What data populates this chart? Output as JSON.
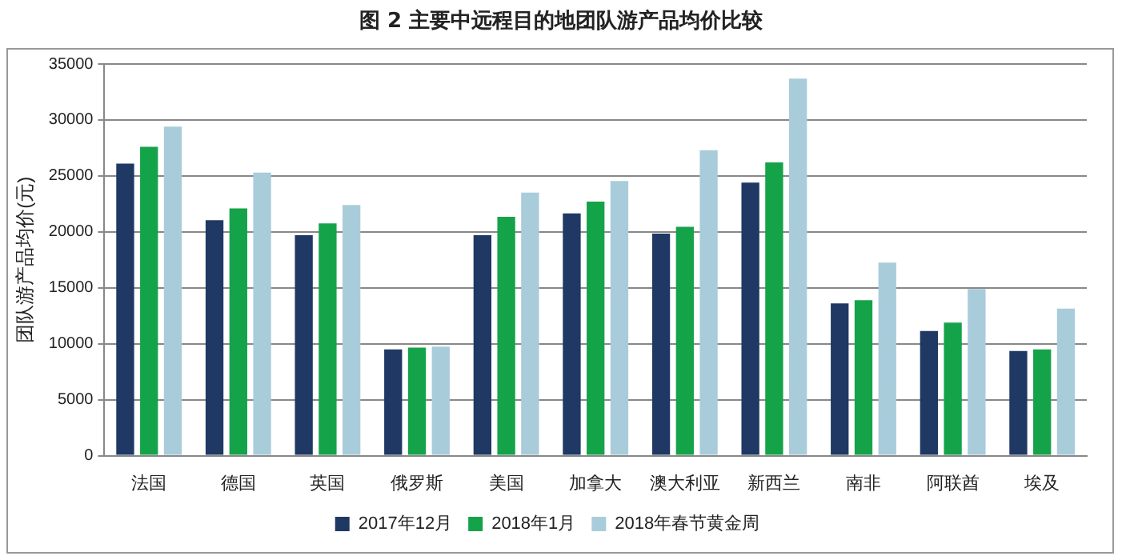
{
  "chart_data": {
    "type": "bar",
    "title": "图 2 主要中远程目的地团队游产品均价比较",
    "ylabel": "团队游产品均价(元)",
    "categories": [
      "法国",
      "德国",
      "英国",
      "俄罗斯",
      "美国",
      "加拿大",
      "澳大利亚",
      "新西兰",
      "南非",
      "阿联酋",
      "埃及"
    ],
    "series": [
      {
        "name": "2017年12月",
        "color": "#1f3864",
        "values": [
          26100,
          21050,
          19700,
          9500,
          19700,
          21650,
          19850,
          24400,
          13600,
          11150,
          9350
        ]
      },
      {
        "name": "2018年1月",
        "color": "#15a34a",
        "values": [
          27600,
          22100,
          20750,
          9650,
          21350,
          22700,
          20450,
          26200,
          13900,
          11900,
          9500
        ]
      },
      {
        "name": "2018年春节黄金周",
        "color": "#a9ccdb",
        "values": [
          29400,
          25300,
          22400,
          9750,
          23500,
          24550,
          27300,
          33700,
          17250,
          14900,
          13150
        ]
      }
    ],
    "ylim": [
      0,
      35000
    ],
    "yticks": [
      0,
      5000,
      10000,
      15000,
      20000,
      25000,
      30000,
      35000
    ],
    "grid": "y",
    "legend": "bottom"
  }
}
